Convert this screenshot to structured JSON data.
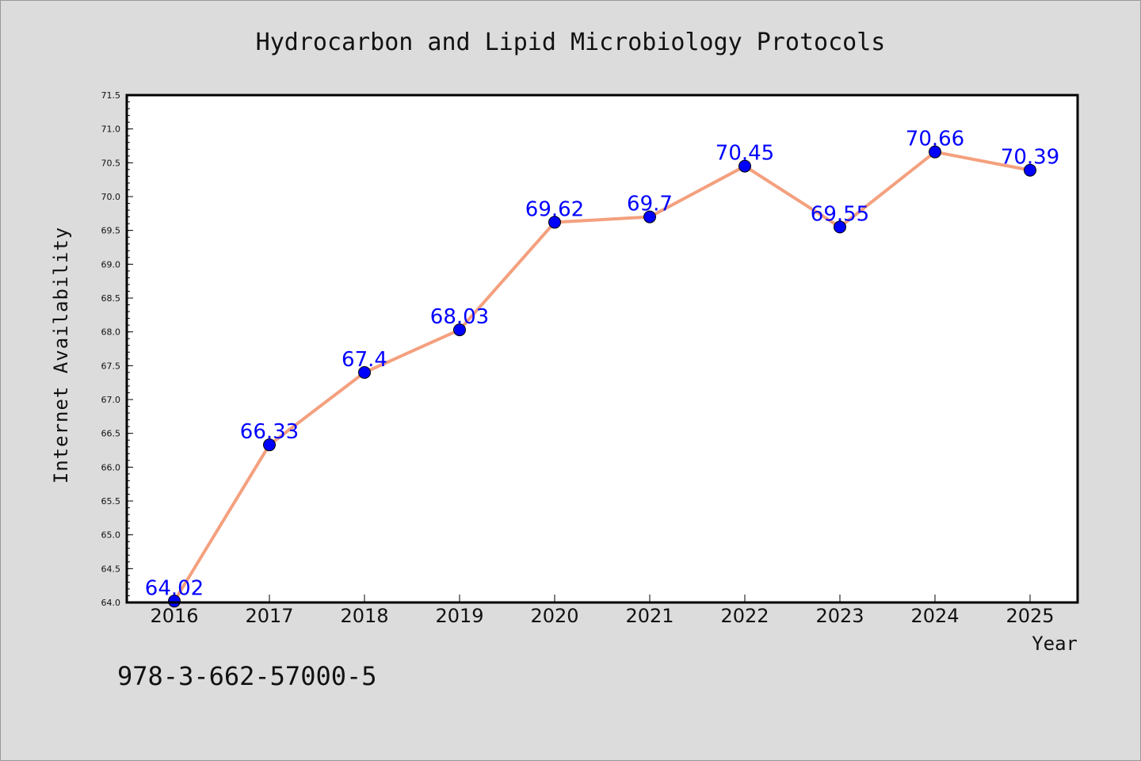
{
  "chart_data": {
    "type": "line",
    "title": "Hydrocarbon and Lipid Microbiology Protocols",
    "xlabel": "Year",
    "ylabel": "Internet Availability",
    "x": [
      "2016",
      "2017",
      "2018",
      "2019",
      "2020",
      "2021",
      "2022",
      "2023",
      "2024",
      "2025"
    ],
    "series": [
      {
        "values": [
          64.02,
          66.33,
          67.4,
          68.03,
          69.62,
          69.7,
          70.45,
          69.55,
          70.66,
          70.39
        ],
        "labels": [
          "64.02",
          "66.33",
          "67.4",
          "68.03",
          "69.62",
          "69.7",
          "70.45",
          "69.55",
          "70.66",
          "70.39"
        ]
      }
    ],
    "ylim": [
      64.0,
      71.5
    ],
    "yticks": [
      "64.0",
      "64.5",
      "65.0",
      "65.5",
      "66.0",
      "66.5",
      "67.0",
      "67.5",
      "68.0",
      "68.5",
      "69.0",
      "69.5",
      "70.0",
      "70.5",
      "71.0",
      "71.5"
    ],
    "grid": false,
    "legend": "none",
    "colors": {
      "line": "#f4a07e",
      "marker": "#0000ff",
      "data_label": "#0000ff",
      "plot_background": "#ffffff",
      "figure_background": "#dcdcdc"
    }
  },
  "footnote": "978-3-662-57000-5"
}
